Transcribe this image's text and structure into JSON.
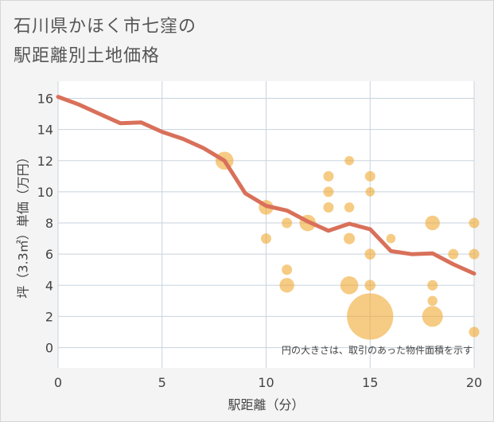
{
  "chart_data": {
    "type": "scatter",
    "title_lines": [
      "石川県かほく市七窪の",
      "駅距離別土地価格"
    ],
    "xlabel": "駅距離（分）",
    "ylabel": "坪（3.3㎡）単価（万円）",
    "xlim": [
      0,
      20
    ],
    "ylim": [
      -1.3,
      17.1
    ],
    "xticks": [
      0,
      5,
      10,
      15,
      20
    ],
    "yticks": [
      0,
      2,
      4,
      6,
      8,
      10,
      12,
      14,
      16
    ],
    "grid": true,
    "note": "円の大きさは、取引のあった物件面積を示す",
    "colors": {
      "bubble": "#f0a830",
      "line": "#d9705a",
      "grid": "#c8d3de",
      "plot_bg": "#ffffff"
    },
    "trend_line": [
      {
        "x": 0,
        "y": 16.1
      },
      {
        "x": 1,
        "y": 15.6
      },
      {
        "x": 2,
        "y": 15.0
      },
      {
        "x": 3,
        "y": 14.4
      },
      {
        "x": 4,
        "y": 14.45
      },
      {
        "x": 5,
        "y": 13.85
      },
      {
        "x": 6,
        "y": 13.4
      },
      {
        "x": 7,
        "y": 12.8
      },
      {
        "x": 8,
        "y": 12.0
      },
      {
        "x": 9,
        "y": 9.9
      },
      {
        "x": 10,
        "y": 9.1
      },
      {
        "x": 11,
        "y": 8.8
      },
      {
        "x": 12,
        "y": 8.1
      },
      {
        "x": 13,
        "y": 7.5
      },
      {
        "x": 14,
        "y": 7.95
      },
      {
        "x": 15,
        "y": 7.6
      },
      {
        "x": 16,
        "y": 6.2
      },
      {
        "x": 17,
        "y": 6.0
      },
      {
        "x": 18,
        "y": 6.05
      },
      {
        "x": 19,
        "y": 5.35
      },
      {
        "x": 20,
        "y": 4.75
      }
    ],
    "points": [
      {
        "x": 8,
        "y": 12,
        "size": 3
      },
      {
        "x": 10,
        "y": 9,
        "size": 2
      },
      {
        "x": 10,
        "y": 7,
        "size": 1
      },
      {
        "x": 11,
        "y": 8,
        "size": 1
      },
      {
        "x": 11,
        "y": 5,
        "size": 1
      },
      {
        "x": 11,
        "y": 4,
        "size": 2
      },
      {
        "x": 12,
        "y": 8,
        "size": 2.5
      },
      {
        "x": 13,
        "y": 11,
        "size": 1
      },
      {
        "x": 13,
        "y": 10,
        "size": 1
      },
      {
        "x": 13,
        "y": 9,
        "size": 1
      },
      {
        "x": 14,
        "y": 12,
        "size": 0.8
      },
      {
        "x": 14,
        "y": 9,
        "size": 0.9
      },
      {
        "x": 14,
        "y": 7,
        "size": 1.2
      },
      {
        "x": 14,
        "y": 4,
        "size": 3
      },
      {
        "x": 15,
        "y": 11,
        "size": 1
      },
      {
        "x": 15,
        "y": 10,
        "size": 0.8
      },
      {
        "x": 15,
        "y": 6,
        "size": 1.1
      },
      {
        "x": 15,
        "y": 4,
        "size": 1.1
      },
      {
        "x": 15,
        "y": 2,
        "size": 20
      },
      {
        "x": 16,
        "y": 7,
        "size": 0.8
      },
      {
        "x": 18,
        "y": 8,
        "size": 2
      },
      {
        "x": 18,
        "y": 4,
        "size": 1
      },
      {
        "x": 18,
        "y": 3,
        "size": 0.9
      },
      {
        "x": 18,
        "y": 2,
        "size": 4
      },
      {
        "x": 19,
        "y": 6,
        "size": 1
      },
      {
        "x": 20,
        "y": 8,
        "size": 1
      },
      {
        "x": 20,
        "y": 6,
        "size": 1
      },
      {
        "x": 20,
        "y": 1,
        "size": 1
      }
    ]
  }
}
